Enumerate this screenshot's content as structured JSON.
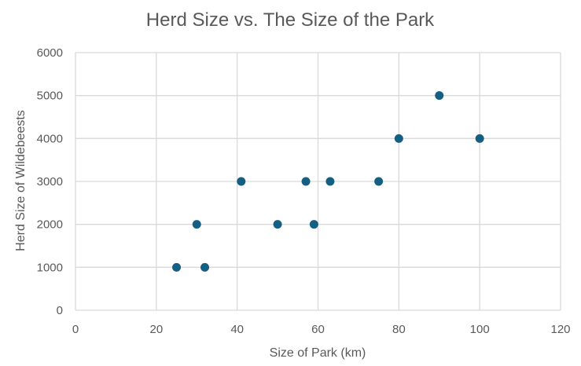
{
  "chart_data": {
    "type": "scatter",
    "title": "Herd Size vs. The Size of the Park",
    "xlabel": "Size of Park (km)",
    "ylabel": "Herd Size of Wildebeests",
    "xlim": [
      0,
      120
    ],
    "ylim": [
      0,
      6000
    ],
    "x_ticks": [
      0,
      20,
      40,
      60,
      80,
      100,
      120
    ],
    "y_ticks": [
      0,
      1000,
      2000,
      3000,
      4000,
      5000,
      6000
    ],
    "grid": true,
    "legend": "none",
    "marker_color": "#156082",
    "points": [
      {
        "x": 25,
        "y": 1000
      },
      {
        "x": 30,
        "y": 2000
      },
      {
        "x": 32,
        "y": 1000
      },
      {
        "x": 41,
        "y": 3000
      },
      {
        "x": 50,
        "y": 2000
      },
      {
        "x": 57,
        "y": 3000
      },
      {
        "x": 59,
        "y": 2000
      },
      {
        "x": 63,
        "y": 3000
      },
      {
        "x": 75,
        "y": 3000
      },
      {
        "x": 80,
        "y": 4000
      },
      {
        "x": 90,
        "y": 5000
      },
      {
        "x": 100,
        "y": 4000
      }
    ]
  }
}
